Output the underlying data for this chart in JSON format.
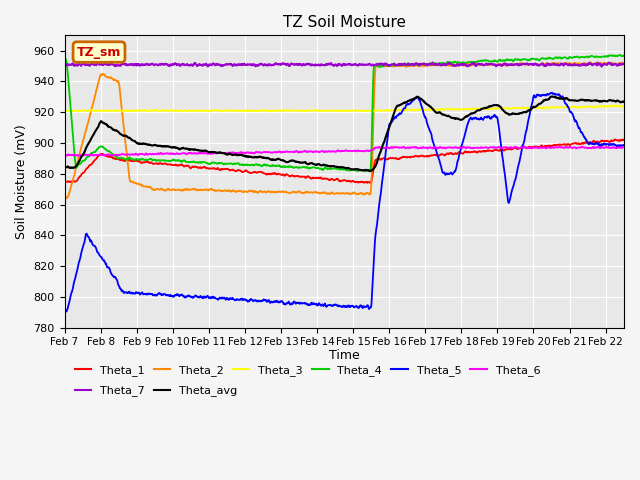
{
  "title": "TZ Soil Moisture",
  "xlabel": "Time",
  "ylabel": "Soil Moisture (mV)",
  "ylim": [
    780,
    970
  ],
  "yticks": [
    780,
    800,
    820,
    840,
    860,
    880,
    900,
    920,
    940,
    960
  ],
  "background_color": "#f5f5f5",
  "plot_bg_color": "#e8e8e8",
  "grid_color": "#ffffff",
  "watermark_text": "TZ_sm",
  "watermark_bg": "#ffffcc",
  "watermark_border": "#cc6600",
  "watermark_text_color": "#cc0000",
  "legend_entries": [
    "Theta_1",
    "Theta_2",
    "Theta_3",
    "Theta_4",
    "Theta_5",
    "Theta_6",
    "Theta_7",
    "Theta_avg"
  ],
  "legend_colors": [
    "#ff0000",
    "#ff8800",
    "#ffff00",
    "#00cc00",
    "#0000ff",
    "#ff00ff",
    "#9900cc",
    "#000000"
  ],
  "x_labels": [
    "Feb 7",
    "Feb 8",
    "Feb 9",
    "Feb 10",
    "Feb 11",
    "Feb 12",
    "Feb 13",
    "Feb 14",
    "Feb 15",
    "Feb 16",
    "Feb 17",
    "Feb 18",
    "Feb 19",
    "Feb 20",
    "Feb 21",
    "Feb 22"
  ]
}
